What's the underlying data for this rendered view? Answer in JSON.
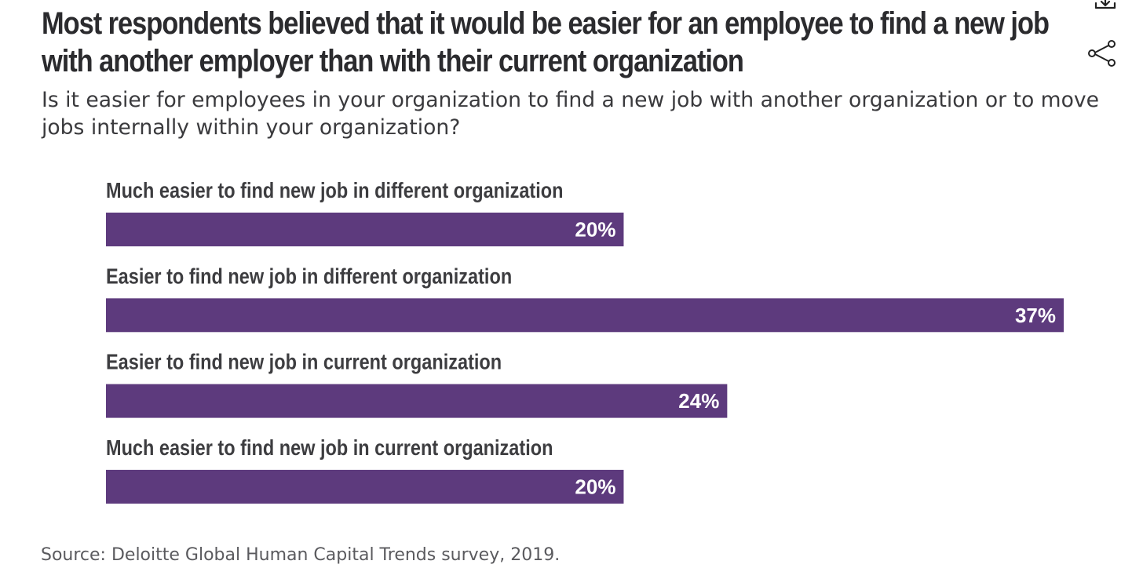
{
  "title": "Most respondents believed that it would be easier for an employee to find a new job with another employer than with their current organization",
  "subtitle": "Is it easier for employees in your organization to find a new job with another organization or to move jobs internally within your organization?",
  "source": "Source: Deloitte Global Human Capital Trends survey, 2019.",
  "icons": {
    "download": "download-icon",
    "share": "share-icon"
  },
  "colors": {
    "bar": "#5d3a7d",
    "category_label": "#3d3d40",
    "value_label": "#ffffff"
  },
  "chart_data": {
    "type": "bar",
    "orientation": "horizontal",
    "categories": [
      "Much easier to find new job in different organization",
      "Easier to find new job in different organization",
      "Easier to find new job in current organization",
      "Much easier to find new job in current organization"
    ],
    "values": [
      20,
      37,
      24,
      20
    ],
    "value_labels": [
      "20%",
      "37%",
      "24%",
      "20%"
    ],
    "unit": "%",
    "xlim": [
      0,
      37
    ],
    "grid": false,
    "legend": "none"
  }
}
